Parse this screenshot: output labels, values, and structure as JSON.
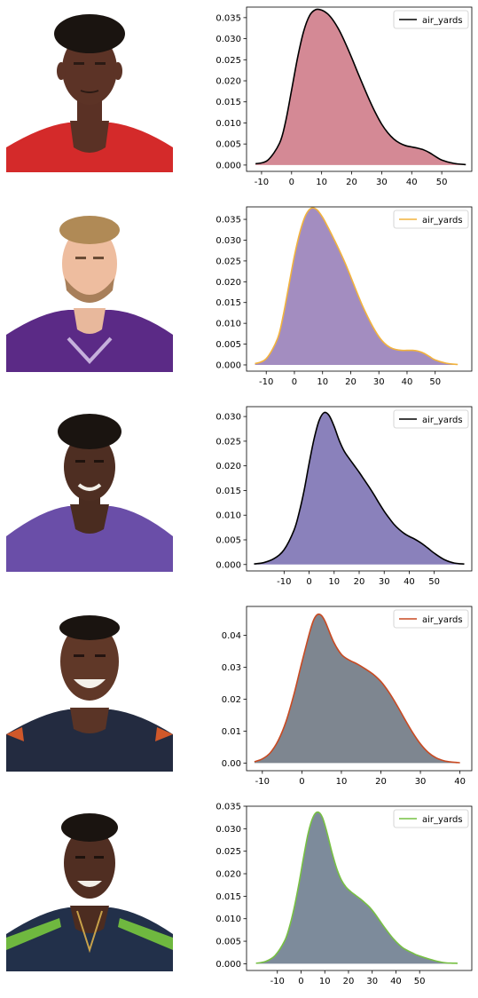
{
  "chart_data": [
    {
      "type": "area",
      "legend": {
        "label": "air_yards",
        "placement": "top-right"
      },
      "line_color": "#000000",
      "fill_color": "#d48995",
      "xlim": [
        -15,
        60
      ],
      "ylim": [
        -0.0015,
        0.0375
      ],
      "xticks": [
        -10,
        0,
        10,
        20,
        30,
        40,
        50
      ],
      "yticks": [
        0.0,
        0.005,
        0.01,
        0.015,
        0.02,
        0.025,
        0.03,
        0.035
      ],
      "ytick_labels": [
        "0.000",
        "0.005",
        "0.010",
        "0.015",
        "0.020",
        "0.025",
        "0.030",
        "0.035"
      ],
      "x": [
        -12,
        -8,
        -4,
        -2,
        0,
        2,
        4,
        6,
        8,
        10,
        12,
        14,
        16,
        18,
        20,
        22,
        24,
        26,
        28,
        30,
        32,
        34,
        36,
        38,
        40,
        42,
        44,
        46,
        48,
        50,
        54,
        58
      ],
      "y": [
        0.0003,
        0.0011,
        0.0052,
        0.0103,
        0.0178,
        0.0255,
        0.0317,
        0.0355,
        0.0369,
        0.0368,
        0.0359,
        0.0342,
        0.0318,
        0.0288,
        0.0255,
        0.022,
        0.0186,
        0.0153,
        0.0123,
        0.0097,
        0.0077,
        0.0062,
        0.0052,
        0.0046,
        0.0043,
        0.004,
        0.0036,
        0.0029,
        0.002,
        0.0012,
        0.0004,
        0.0001
      ]
    },
    {
      "type": "area",
      "legend": {
        "label": "air_yards",
        "placement": "top-right"
      },
      "line_color": "#f2b33d",
      "fill_color": "#a38dc0",
      "xlim": [
        -17,
        63
      ],
      "ylim": [
        -0.0015,
        0.038
      ],
      "xticks": [
        -10,
        0,
        10,
        20,
        30,
        40,
        50
      ],
      "yticks": [
        0.0,
        0.005,
        0.01,
        0.015,
        0.02,
        0.025,
        0.03,
        0.035
      ],
      "ytick_labels": [
        "0.000",
        "0.005",
        "0.010",
        "0.015",
        "0.020",
        "0.025",
        "0.030",
        "0.035"
      ],
      "x": [
        -14,
        -10,
        -6,
        -4,
        -2,
        0,
        2,
        4,
        6,
        8,
        10,
        12,
        14,
        16,
        18,
        20,
        22,
        24,
        26,
        28,
        30,
        32,
        34,
        36,
        38,
        40,
        42,
        44,
        46,
        48,
        50,
        54,
        58
      ],
      "y": [
        0.0003,
        0.0015,
        0.0063,
        0.0118,
        0.019,
        0.0262,
        0.032,
        0.036,
        0.0377,
        0.0373,
        0.0355,
        0.033,
        0.0303,
        0.0275,
        0.0245,
        0.0212,
        0.0178,
        0.0145,
        0.0116,
        0.009,
        0.0068,
        0.0052,
        0.0042,
        0.0037,
        0.0035,
        0.0035,
        0.0035,
        0.0033,
        0.0028,
        0.002,
        0.0012,
        0.0004,
        0.0001
      ]
    },
    {
      "type": "area",
      "legend": {
        "label": "air_yards",
        "placement": "top-right"
      },
      "line_color": "#000000",
      "fill_color": "#8a81bb",
      "xlim": [
        -25,
        65
      ],
      "ylim": [
        -0.0013,
        0.032
      ],
      "xticks": [
        -10,
        0,
        10,
        20,
        30,
        40,
        50
      ],
      "yticks": [
        0.0,
        0.005,
        0.01,
        0.015,
        0.02,
        0.025,
        0.03
      ],
      "ytick_labels": [
        "0.000",
        "0.005",
        "0.010",
        "0.015",
        "0.020",
        "0.025",
        "0.030"
      ],
      "x": [
        -22,
        -18,
        -14,
        -10,
        -6,
        -4,
        -2,
        0,
        2,
        4,
        6,
        8,
        10,
        12,
        14,
        16,
        18,
        20,
        22,
        24,
        26,
        28,
        30,
        32,
        34,
        36,
        38,
        40,
        42,
        44,
        46,
        48,
        50,
        54,
        58,
        62
      ],
      "y": [
        0.0001,
        0.0004,
        0.0012,
        0.003,
        0.007,
        0.0105,
        0.015,
        0.0205,
        0.0255,
        0.0292,
        0.0308,
        0.0302,
        0.028,
        0.0252,
        0.023,
        0.0215,
        0.0201,
        0.0187,
        0.0172,
        0.0157,
        0.0141,
        0.0124,
        0.0108,
        0.0094,
        0.0081,
        0.0071,
        0.0063,
        0.0057,
        0.0052,
        0.0046,
        0.0039,
        0.0031,
        0.0023,
        0.001,
        0.0003,
        0.0001
      ]
    },
    {
      "type": "area",
      "legend": {
        "label": "air_yards",
        "placement": "top-right"
      },
      "line_color": "#c84a22",
      "fill_color": "#7e8690",
      "xlim": [
        -14,
        43
      ],
      "ylim": [
        -0.0024,
        0.049
      ],
      "xticks": [
        -10,
        0,
        10,
        20,
        30,
        40
      ],
      "yticks": [
        0.0,
        0.01,
        0.02,
        0.03,
        0.04
      ],
      "ytick_labels": [
        "0.00",
        "0.01",
        "0.02",
        "0.03",
        "0.04"
      ],
      "x": [
        -12,
        -10,
        -8,
        -6,
        -4,
        -2,
        0,
        2,
        3,
        4,
        5,
        6,
        8,
        10,
        12,
        14,
        16,
        18,
        20,
        22,
        24,
        26,
        28,
        30,
        32,
        34,
        36,
        38,
        40
      ],
      "y": [
        0.0004,
        0.0013,
        0.0032,
        0.007,
        0.013,
        0.0215,
        0.0315,
        0.041,
        0.0448,
        0.0465,
        0.0461,
        0.044,
        0.038,
        0.034,
        0.0322,
        0.031,
        0.0295,
        0.0278,
        0.0255,
        0.0222,
        0.0182,
        0.0138,
        0.0096,
        0.006,
        0.0033,
        0.0016,
        0.0007,
        0.0003,
        0.0001
      ]
    },
    {
      "type": "area",
      "legend": {
        "label": "air_yards",
        "placement": "top-right"
      },
      "line_color": "#77c043",
      "fill_color": "#7d8b9b",
      "xlim": [
        -23,
        72
      ],
      "ylim": [
        -0.0015,
        0.035
      ],
      "xticks": [
        -10,
        0,
        10,
        20,
        30,
        40,
        50
      ],
      "yticks": [
        0.0,
        0.005,
        0.01,
        0.015,
        0.02,
        0.025,
        0.03,
        0.035
      ],
      "ytick_labels": [
        "0.000",
        "0.005",
        "0.010",
        "0.015",
        "0.020",
        "0.025",
        "0.030",
        "0.035"
      ],
      "x": [
        -19,
        -15,
        -11,
        -7,
        -5,
        -3,
        -1,
        1,
        3,
        5,
        7,
        9,
        11,
        13,
        15,
        17,
        19,
        21,
        23,
        25,
        27,
        29,
        31,
        33,
        35,
        37,
        39,
        41,
        43,
        45,
        47,
        49,
        53,
        57,
        61,
        66
      ],
      "y": [
        0.0001,
        0.0005,
        0.0018,
        0.005,
        0.008,
        0.0122,
        0.0175,
        0.0235,
        0.029,
        0.0325,
        0.0337,
        0.0325,
        0.029,
        0.0248,
        0.0212,
        0.0186,
        0.017,
        0.016,
        0.0152,
        0.0144,
        0.0135,
        0.0125,
        0.0112,
        0.0097,
        0.0082,
        0.0068,
        0.0055,
        0.0044,
        0.0035,
        0.0029,
        0.0024,
        0.0019,
        0.0012,
        0.0006,
        0.0002,
        0.0001
      ]
    }
  ]
}
